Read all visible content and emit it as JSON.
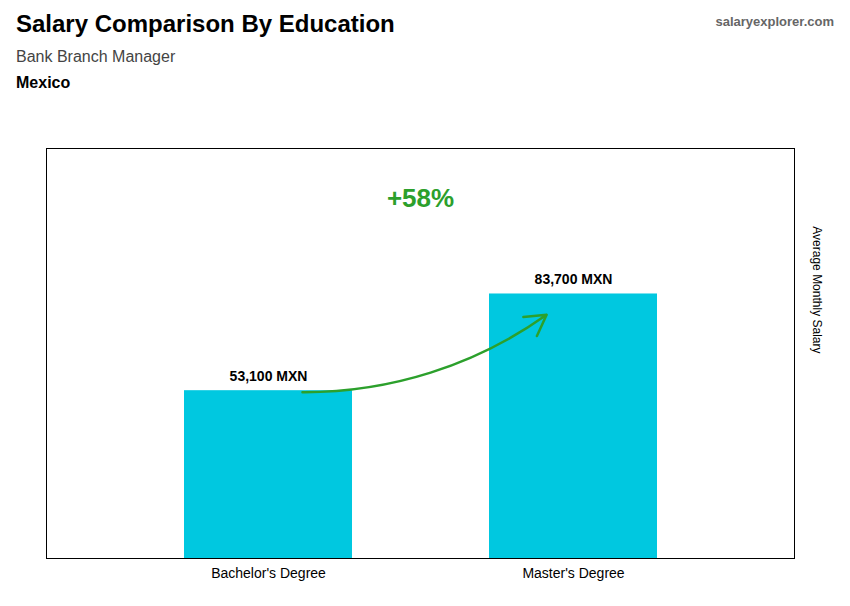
{
  "chart_data": {
    "type": "bar",
    "title": "Salary Comparison By Education",
    "subtitle": "Bank Branch Manager",
    "annotations": [
      "Mexico",
      "salaryexplorer.com",
      "+58%"
    ],
    "ylabel": "Average Monthly Salary",
    "categories": [
      "Bachelor's Degree",
      "Master's Degree"
    ],
    "values": [
      53100,
      83700
    ],
    "value_labels": [
      "53,100 MXN",
      "83,700 MXN"
    ],
    "data_labels": true,
    "color": "#00c8e0",
    "ylim": [
      0,
      129735
    ],
    "tick_labels": "x"
  }
}
